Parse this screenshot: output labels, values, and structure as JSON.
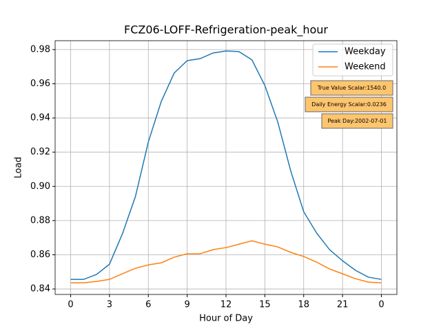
{
  "chart_data": {
    "type": "line",
    "title": "FCZ06-LOFF-Refrigeration-peak_hour",
    "xlabel": "Hour of Day",
    "ylabel": "Load",
    "x": [
      0,
      1,
      2,
      3,
      4,
      5,
      6,
      7,
      8,
      9,
      10,
      11,
      12,
      13,
      14,
      15,
      16,
      17,
      18,
      19,
      20,
      21,
      22,
      23,
      24
    ],
    "series": [
      {
        "name": "Weekday",
        "color": "#1f77b4",
        "values": [
          0.8456,
          0.8456,
          0.8485,
          0.8545,
          0.8723,
          0.894,
          0.926,
          0.9497,
          0.9663,
          0.9735,
          0.9747,
          0.978,
          0.9792,
          0.9788,
          0.974,
          0.959,
          0.9376,
          0.909,
          0.8852,
          0.8727,
          0.863,
          0.8565,
          0.8509,
          0.8469,
          0.8456
        ]
      },
      {
        "name": "Weekend",
        "color": "#ff7f0e",
        "values": [
          0.8436,
          0.8436,
          0.8444,
          0.8456,
          0.8489,
          0.8521,
          0.8541,
          0.8553,
          0.8586,
          0.8606,
          0.8606,
          0.863,
          0.8642,
          0.8662,
          0.8682,
          0.8662,
          0.8646,
          0.8614,
          0.859,
          0.8557,
          0.8517,
          0.8489,
          0.846,
          0.844,
          0.8436
        ]
      }
    ],
    "xlim": [
      -1.2,
      25.2
    ],
    "xticks": [
      0,
      3,
      6,
      9,
      12,
      15,
      18,
      21,
      {
        "value": 24,
        "label": "0"
      }
    ],
    "ylim": [
      0.8368,
      0.9852
    ],
    "yticks": [
      0.84,
      0.86,
      0.88,
      {
        "value": 0.9,
        "label": "0.90"
      },
      0.92,
      0.94,
      0.96,
      0.98
    ],
    "grid": true,
    "legend": "upper right",
    "annotations": [
      "True Value Scalar:1540.0",
      "Daily Energy Scalar:0.0236",
      "Peak Day:2002-07-01"
    ],
    "annotation_color": "#fdc56e"
  }
}
